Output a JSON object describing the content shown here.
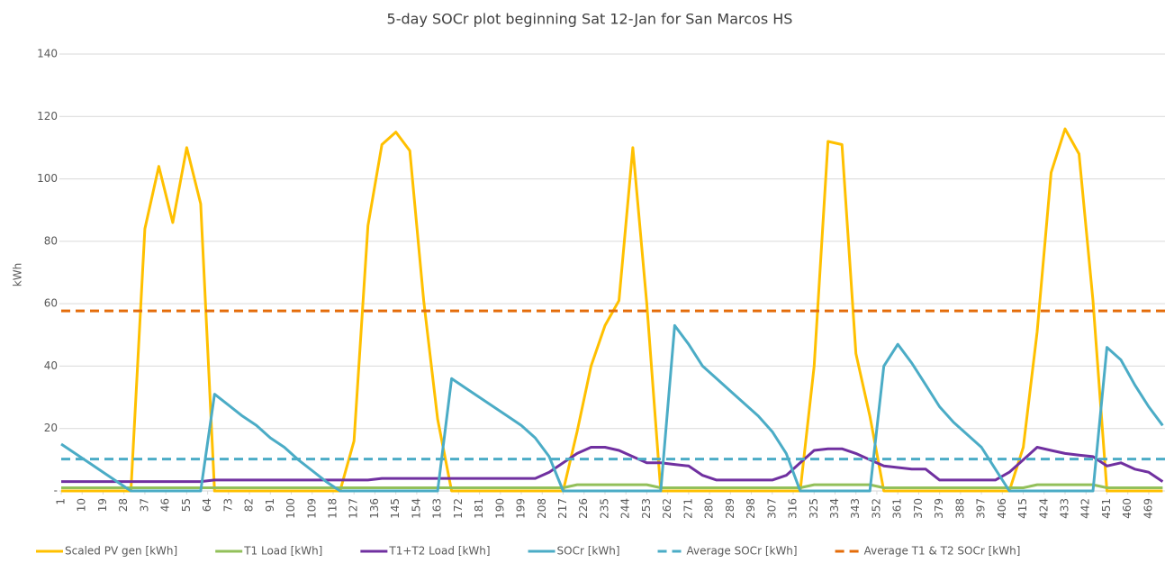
{
  "chart_data": {
    "type": "line",
    "title": "5-day SOCr plot beginning Sat 12-Jan for San Marcos HS",
    "y_label": "kWh",
    "xlim": [
      1,
      476
    ],
    "ylim": [
      0,
      140
    ],
    "yticks": [
      {
        "value": 0,
        "label": "-"
      },
      20,
      40,
      60,
      80,
      100,
      120,
      140
    ],
    "xticks": [
      1,
      10,
      19,
      28,
      37,
      46,
      55,
      64,
      73,
      82,
      91,
      100,
      109,
      118,
      127,
      136,
      145,
      154,
      163,
      172,
      181,
      190,
      199,
      208,
      217,
      226,
      235,
      244,
      253,
      262,
      271,
      280,
      289,
      298,
      307,
      316,
      325,
      334,
      343,
      352,
      361,
      370,
      379,
      388,
      397,
      406,
      415,
      424,
      433,
      442,
      451,
      460,
      469
    ],
    "grid": true,
    "legend": "bottom",
    "x": [
      1,
      7,
      13,
      19,
      25,
      31,
      37,
      43,
      49,
      55,
      61,
      67,
      73,
      79,
      85,
      91,
      97,
      103,
      109,
      115,
      121,
      127,
      133,
      139,
      145,
      151,
      157,
      163,
      169,
      175,
      181,
      187,
      193,
      199,
      205,
      211,
      217,
      223,
      229,
      235,
      241,
      247,
      253,
      259,
      265,
      271,
      277,
      283,
      289,
      295,
      301,
      307,
      313,
      319,
      325,
      331,
      337,
      343,
      349,
      355,
      361,
      367,
      373,
      379,
      385,
      391,
      397,
      403,
      409,
      415,
      421,
      427,
      433,
      439,
      445,
      451,
      457,
      463,
      469,
      475
    ],
    "series": [
      {
        "name": "Scaled PV gen [kWh]",
        "color": "#ffc000",
        "values": [
          0,
          0,
          0,
          0,
          0,
          0,
          84,
          104,
          86,
          110,
          92,
          0,
          0,
          0,
          0,
          0,
          0,
          0,
          0,
          0,
          0,
          16,
          85,
          111,
          115,
          109,
          61,
          23,
          0,
          0,
          0,
          0,
          0,
          0,
          0,
          0,
          0,
          19,
          40,
          53,
          61,
          110,
          60,
          0,
          0,
          0,
          0,
          0,
          0,
          0,
          0,
          0,
          0,
          0,
          40,
          112,
          111,
          44,
          24,
          0,
          0,
          0,
          0,
          0,
          0,
          0,
          0,
          0,
          0,
          14,
          51,
          102,
          116,
          108,
          61,
          0,
          0,
          0,
          0,
          0
        ]
      },
      {
        "name": "T1 Load [kWh]",
        "color": "#92c05a",
        "values": [
          1,
          1,
          1,
          1,
          1,
          1,
          1,
          1,
          1,
          1,
          1,
          1,
          1,
          1,
          1,
          1,
          1,
          1,
          1,
          1,
          1,
          1,
          1,
          1,
          1,
          1,
          1,
          1,
          1,
          1,
          1,
          1,
          1,
          1,
          1,
          1,
          1,
          2,
          2,
          2,
          2,
          2,
          2,
          1,
          1,
          1,
          1,
          1,
          1,
          1,
          1,
          1,
          1,
          1,
          2,
          2,
          2,
          2,
          2,
          1,
          1,
          1,
          1,
          1,
          1,
          1,
          1,
          1,
          1,
          1,
          2,
          2,
          2,
          2,
          2,
          1,
          1,
          1,
          1,
          1
        ]
      },
      {
        "name": "T1+T2 Load [kWh]",
        "color": "#7030a0",
        "values": [
          3,
          3,
          3,
          3,
          3,
          3,
          3,
          3,
          3,
          3,
          3,
          3.5,
          3.5,
          3.5,
          3.5,
          3.5,
          3.5,
          3.5,
          3.5,
          3.5,
          3.5,
          3.5,
          3.5,
          4,
          4,
          4,
          4,
          4,
          4,
          4,
          4,
          4,
          4,
          4,
          4,
          6,
          9,
          12,
          14,
          14,
          13,
          11,
          9,
          9,
          8.5,
          8,
          5,
          3.5,
          3.5,
          3.5,
          3.5,
          3.5,
          5,
          9,
          13,
          13.5,
          13.5,
          12,
          10,
          8,
          7.5,
          7,
          7,
          3.5,
          3.5,
          3.5,
          3.5,
          3.5,
          6,
          10,
          14,
          13,
          12,
          11.5,
          11,
          8,
          9,
          7,
          6,
          3
        ]
      },
      {
        "name": "SOCr [kWh]",
        "color": "#4bacc6",
        "values": [
          15,
          12,
          9,
          6,
          3,
          0,
          0,
          0,
          0,
          0,
          0,
          31,
          27.5,
          24,
          21,
          17,
          14,
          10,
          6.5,
          3,
          0,
          0,
          0,
          0,
          0,
          0,
          0,
          0,
          36,
          33,
          30,
          27,
          24,
          21,
          17,
          11,
          0,
          0,
          0,
          0,
          0,
          0,
          0,
          0,
          53,
          47,
          40,
          36,
          32,
          28,
          24,
          19,
          12,
          0,
          0,
          0,
          0,
          0,
          0,
          40,
          47,
          41,
          34,
          27,
          22,
          18,
          14,
          7,
          0,
          0,
          0,
          0,
          0,
          0,
          0,
          46,
          42,
          34,
          27,
          21
        ]
      },
      {
        "name": "Average SOCr [kWh]",
        "color": "#4bacc6",
        "dashed": true,
        "value": 10.2
      },
      {
        "name": "Average T1 & T2 SOCr [kWh]",
        "color": "#e46c0a",
        "dashed": true,
        "value": 57.7
      }
    ]
  }
}
